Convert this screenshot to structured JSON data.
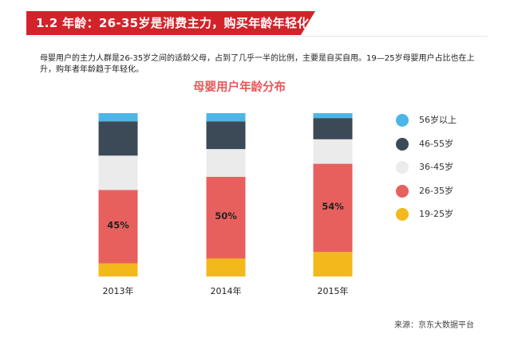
{
  "header": {
    "title": "1.2 年龄：26-35岁是消费主力，购买年龄年轻化",
    "accent_color": "#d2232a"
  },
  "description": "母婴用户的主力人群是26-35岁之间的适龄父母，占到了几乎一半的比例，主要是自买自用。19—25岁母婴用户占比也在上升，购年者年龄趋于年轻化。",
  "source": "来源：京东大数据平台",
  "chart_data": {
    "type": "bar",
    "stacked": true,
    "normalized": true,
    "title": "母婴用户年龄分布",
    "categories": [
      "2013年",
      "2014年",
      "2015年"
    ],
    "series": [
      {
        "name": "19-25岁",
        "color": "#f3b81b",
        "values": [
          8,
          11,
          15
        ]
      },
      {
        "name": "26-35岁",
        "color": "#e8605e",
        "values": [
          45,
          50,
          54
        ],
        "labels": [
          "45%",
          "50%",
          "54%"
        ]
      },
      {
        "name": "36-45岁",
        "color": "#ebebeb",
        "values": [
          21,
          17,
          15
        ]
      },
      {
        "name": "46-55岁",
        "color": "#3c4a58",
        "values": [
          21,
          17,
          13
        ]
      },
      {
        "name": "56岁以上",
        "color": "#4db6e6",
        "values": [
          5,
          5,
          3
        ]
      }
    ],
    "ylim": [
      0,
      100
    ],
    "legend": "right",
    "grid": false
  }
}
